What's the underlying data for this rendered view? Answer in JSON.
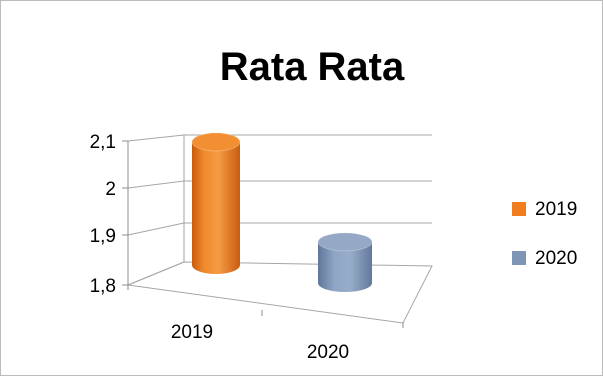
{
  "chart_data": {
    "type": "bar",
    "title": "Rata Rata",
    "categories": [
      "2019",
      "2020"
    ],
    "series": [
      {
        "name": "2019",
        "values": [
          2.09,
          null
        ],
        "color": "#f07d1e"
      },
      {
        "name": "2020",
        "values": [
          null,
          1.87
        ],
        "color": "#7f95b5"
      }
    ],
    "ylim": [
      1.8,
      2.1
    ],
    "yticks": [
      "1,8",
      "1,9",
      "2",
      "2,1"
    ],
    "yticks_values": [
      1.8,
      1.9,
      2.0,
      2.1
    ],
    "legend": [
      "2019",
      "2020"
    ],
    "legend_position": "right",
    "grid": true,
    "style": "3d-cylinder"
  }
}
